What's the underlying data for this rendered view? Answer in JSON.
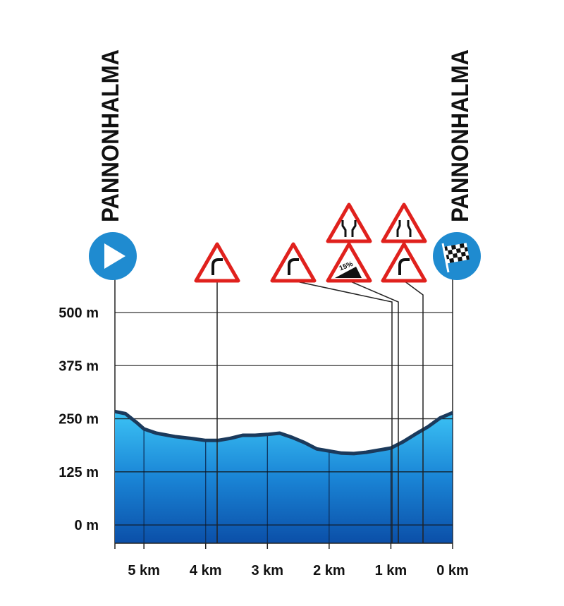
{
  "chart_data": {
    "type": "area",
    "start_label": "PANNONHALMA",
    "finish_label": "PANNONHALMA",
    "sign_text": "15%",
    "x": [
      5.47,
      5.3,
      5.1,
      5.0,
      4.8,
      4.5,
      4.2,
      4.0,
      3.8,
      3.6,
      3.4,
      3.2,
      3.0,
      2.8,
      2.6,
      2.4,
      2.2,
      2.0,
      1.8,
      1.6,
      1.4,
      1.2,
      1.0,
      0.8,
      0.6,
      0.4,
      0.2,
      0.0
    ],
    "y": [
      267,
      262,
      239,
      226,
      216,
      208,
      203,
      199,
      199,
      204,
      211,
      211,
      213,
      216,
      206,
      194,
      179,
      174,
      169,
      168,
      171,
      176,
      181,
      196,
      214,
      231,
      252,
      264
    ],
    "xlim": [
      5.47,
      0
    ],
    "xticks": [
      {
        "value": 5,
        "label": "5 km"
      },
      {
        "value": 4,
        "label": "4 km"
      },
      {
        "value": 3,
        "label": "3 km"
      },
      {
        "value": 2,
        "label": "2 km"
      },
      {
        "value": 1,
        "label": "1 km"
      },
      {
        "value": 0,
        "label": "0 km"
      }
    ],
    "ylim": [
      -43,
      500
    ],
    "yticks": [
      {
        "value": 0,
        "label": "0 m"
      },
      {
        "value": 125,
        "label": "125 m"
      },
      {
        "value": 250,
        "label": "250 m"
      },
      {
        "value": 375,
        "label": "375 m"
      },
      {
        "value": 500,
        "label": "500 m"
      }
    ],
    "grid": true,
    "color": "#1d6fc4",
    "line_color": "#1b3a5c"
  }
}
